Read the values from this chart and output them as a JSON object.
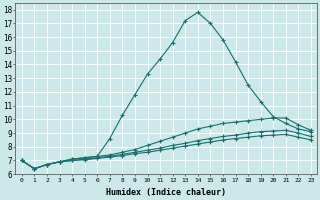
{
  "xlabel": "Humidex (Indice chaleur)",
  "xlim": [
    -0.5,
    23.5
  ],
  "ylim": [
    6,
    18.5
  ],
  "xticks": [
    0,
    1,
    2,
    3,
    4,
    5,
    6,
    7,
    8,
    9,
    10,
    11,
    12,
    13,
    14,
    15,
    16,
    17,
    18,
    19,
    20,
    21,
    22,
    23
  ],
  "yticks": [
    6,
    7,
    8,
    9,
    10,
    11,
    12,
    13,
    14,
    15,
    16,
    17,
    18
  ],
  "bg_color": "#cce8e8",
  "line_color": "#1a6e6e",
  "grid_color": "#ffffff",
  "lines": [
    {
      "x": [
        0,
        1,
        2,
        3,
        4,
        5,
        6,
        7,
        8,
        9,
        10,
        11,
        12,
        13,
        14,
        15,
        16,
        17,
        18,
        19,
        20,
        21,
        22,
        23
      ],
      "y": [
        7.0,
        6.4,
        6.7,
        6.9,
        7.1,
        7.2,
        7.3,
        8.6,
        10.3,
        11.8,
        13.3,
        14.4,
        15.6,
        17.2,
        17.8,
        17.0,
        15.8,
        14.2,
        12.5,
        11.3,
        10.2,
        9.7,
        9.3,
        9.1
      ]
    },
    {
      "x": [
        0,
        1,
        2,
        3,
        4,
        5,
        6,
        7,
        8,
        9,
        10,
        11,
        12,
        13,
        14,
        15,
        16,
        17,
        18,
        19,
        20,
        21,
        22,
        23
      ],
      "y": [
        7.0,
        6.4,
        6.7,
        6.9,
        7.1,
        7.2,
        7.3,
        7.4,
        7.6,
        7.8,
        8.1,
        8.4,
        8.7,
        9.0,
        9.3,
        9.5,
        9.7,
        9.8,
        9.9,
        10.0,
        10.1,
        10.1,
        9.6,
        9.2
      ]
    },
    {
      "x": [
        0,
        1,
        2,
        3,
        4,
        5,
        6,
        7,
        8,
        9,
        10,
        11,
        12,
        13,
        14,
        15,
        16,
        17,
        18,
        19,
        20,
        21,
        22,
        23
      ],
      "y": [
        7.0,
        6.4,
        6.7,
        6.9,
        7.0,
        7.1,
        7.2,
        7.3,
        7.45,
        7.6,
        7.75,
        7.9,
        8.1,
        8.25,
        8.45,
        8.6,
        8.75,
        8.85,
        9.0,
        9.1,
        9.15,
        9.2,
        9.0,
        8.75
      ]
    },
    {
      "x": [
        0,
        1,
        2,
        3,
        4,
        5,
        6,
        7,
        8,
        9,
        10,
        11,
        12,
        13,
        14,
        15,
        16,
        17,
        18,
        19,
        20,
        21,
        22,
        23
      ],
      "y": [
        7.0,
        6.4,
        6.7,
        6.9,
        7.0,
        7.05,
        7.15,
        7.25,
        7.35,
        7.5,
        7.6,
        7.75,
        7.9,
        8.05,
        8.2,
        8.35,
        8.5,
        8.6,
        8.7,
        8.8,
        8.85,
        8.9,
        8.7,
        8.5
      ]
    }
  ]
}
